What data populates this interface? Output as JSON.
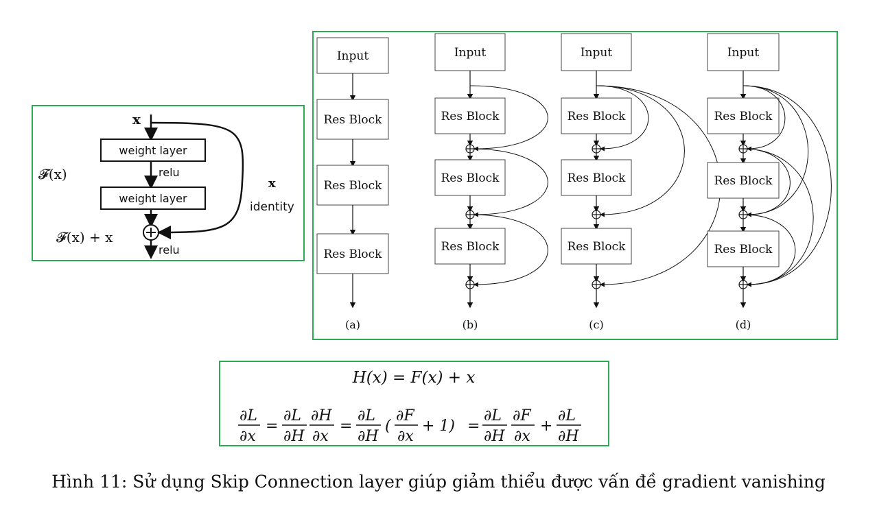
{
  "left_diagram": {
    "input_label": "x",
    "weight_layer_1": "weight layer",
    "relu_mid": "relu",
    "weight_layer_2": "weight layer",
    "relu_out": "relu",
    "fx_label": "𝓕(x)",
    "sum_label": "𝓕(x) + x",
    "identity_x": "x",
    "identity_label": "identity"
  },
  "variants": [
    {
      "input": "Input",
      "blocks": [
        "Res Block",
        "Res Block",
        "Res Block"
      ],
      "label": "(a)"
    },
    {
      "input": "Input",
      "blocks": [
        "Res Block",
        "Res Block",
        "Res Block"
      ],
      "label": "(b)"
    },
    {
      "input": "Input",
      "blocks": [
        "Res Block",
        "Res Block",
        "Res Block"
      ],
      "label": "(c)"
    },
    {
      "input": "Input",
      "blocks": [
        "Res Block",
        "Res Block",
        "Res Block"
      ],
      "label": "(d)"
    }
  ],
  "formula": {
    "line1": "H(x)  =  F(x)  + x",
    "eq": "=",
    "plus": "+",
    "one": "+ 1)",
    "open": "(",
    "dL": "∂L",
    "dx": "∂x",
    "dH": "∂H",
    "dF": "∂F"
  },
  "caption": "Hình 11: Sử dụng Skip Connection layer giúp giảm thiểu được vấn đề gradient vanishing"
}
